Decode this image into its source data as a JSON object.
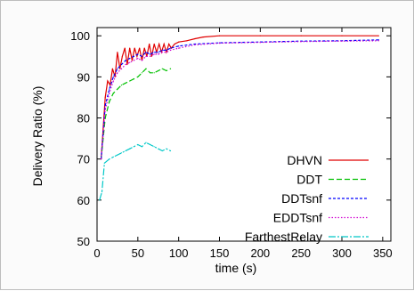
{
  "chart_data": {
    "type": "line",
    "xlabel": "time (s)",
    "ylabel": "Delivery Ratio (%)",
    "xlim": [
      0,
      360
    ],
    "ylim": [
      50,
      102
    ],
    "xticks": [
      "0",
      "50",
      "100",
      "150",
      "200",
      "250",
      "300",
      "350"
    ],
    "yticks": [
      "50",
      "60",
      "70",
      "80",
      "90",
      "100"
    ],
    "legend_position": "bottom-right",
    "grid": false,
    "series": [
      {
        "name": "DHVN",
        "color": "#e00000",
        "dash": "",
        "points": [
          [
            5,
            70
          ],
          [
            10,
            85
          ],
          [
            13,
            89
          ],
          [
            16,
            88
          ],
          [
            19,
            92
          ],
          [
            22,
            90
          ],
          [
            25,
            96
          ],
          [
            28,
            92
          ],
          [
            31,
            95
          ],
          [
            34,
            97
          ],
          [
            37,
            93
          ],
          [
            40,
            97
          ],
          [
            43,
            94
          ],
          [
            46,
            97
          ],
          [
            49,
            95
          ],
          [
            52,
            97
          ],
          [
            55,
            94
          ],
          [
            58,
            97
          ],
          [
            61,
            95
          ],
          [
            64,
            98
          ],
          [
            67,
            95
          ],
          [
            70,
            98
          ],
          [
            73,
            96
          ],
          [
            76,
            98
          ],
          [
            79,
            96
          ],
          [
            82,
            98
          ],
          [
            85,
            96
          ],
          [
            88,
            98
          ],
          [
            91,
            97
          ],
          [
            95,
            98
          ],
          [
            100,
            98.5
          ],
          [
            110,
            98.8
          ],
          [
            120,
            99.3
          ],
          [
            130,
            99.7
          ],
          [
            150,
            100
          ],
          [
            200,
            100
          ],
          [
            250,
            100
          ],
          [
            300,
            100
          ],
          [
            345,
            100
          ]
        ]
      },
      {
        "name": "DDT",
        "color": "#00c000",
        "dash": "6,3",
        "points": [
          [
            5,
            70
          ],
          [
            10,
            80
          ],
          [
            15,
            84
          ],
          [
            20,
            86
          ],
          [
            25,
            87
          ],
          [
            30,
            88
          ],
          [
            35,
            88.5
          ],
          [
            40,
            89
          ],
          [
            45,
            89.5
          ],
          [
            50,
            90
          ],
          [
            55,
            91
          ],
          [
            60,
            92
          ],
          [
            65,
            91
          ],
          [
            70,
            91
          ],
          [
            75,
            91.5
          ],
          [
            80,
            92
          ],
          [
            85,
            91.5
          ],
          [
            90,
            92
          ]
        ]
      },
      {
        "name": "DDTsnf",
        "color": "#0000ff",
        "dash": "3,2",
        "points": [
          [
            5,
            70
          ],
          [
            10,
            83
          ],
          [
            15,
            87
          ],
          [
            20,
            90
          ],
          [
            25,
            92
          ],
          [
            30,
            93
          ],
          [
            35,
            94
          ],
          [
            40,
            94.5
          ],
          [
            45,
            95
          ],
          [
            50,
            95.5
          ],
          [
            55,
            95
          ],
          [
            60,
            96
          ],
          [
            65,
            95.5
          ],
          [
            70,
            96
          ],
          [
            75,
            96
          ],
          [
            80,
            96.5
          ],
          [
            85,
            96.5
          ],
          [
            90,
            97
          ],
          [
            100,
            97.5
          ],
          [
            120,
            98
          ],
          [
            150,
            98.3
          ],
          [
            200,
            98.5
          ],
          [
            250,
            98.7
          ],
          [
            300,
            98.8
          ],
          [
            345,
            99
          ]
        ]
      },
      {
        "name": "EDDTsnf",
        "color": "#d000d0",
        "dash": "1.5,2",
        "points": [
          [
            5,
            70
          ],
          [
            10,
            82
          ],
          [
            15,
            86
          ],
          [
            20,
            89
          ],
          [
            25,
            91
          ],
          [
            30,
            92
          ],
          [
            35,
            93
          ],
          [
            40,
            93.5
          ],
          [
            45,
            94
          ],
          [
            50,
            94.5
          ],
          [
            55,
            94
          ],
          [
            60,
            95
          ],
          [
            65,
            95
          ],
          [
            70,
            95.5
          ],
          [
            75,
            95.5
          ],
          [
            80,
            96
          ],
          [
            85,
            96
          ],
          [
            90,
            96.5
          ],
          [
            100,
            97
          ],
          [
            120,
            97.8
          ],
          [
            150,
            98.2
          ],
          [
            200,
            98.4
          ],
          [
            250,
            98.6
          ],
          [
            300,
            98.7
          ],
          [
            345,
            98.8
          ]
        ]
      },
      {
        "name": "FarthestRelay",
        "color": "#00c8c8",
        "dash": "8,2,2,2",
        "points": [
          [
            3,
            60
          ],
          [
            6,
            62
          ],
          [
            9,
            69
          ],
          [
            15,
            70
          ],
          [
            20,
            70.5
          ],
          [
            25,
            71
          ],
          [
            30,
            71.5
          ],
          [
            35,
            72
          ],
          [
            40,
            72.5
          ],
          [
            45,
            73
          ],
          [
            50,
            73.5
          ],
          [
            55,
            73
          ],
          [
            60,
            74
          ],
          [
            65,
            73.5
          ],
          [
            70,
            73
          ],
          [
            75,
            72.5
          ],
          [
            80,
            72
          ],
          [
            85,
            72.5
          ],
          [
            90,
            72
          ]
        ]
      }
    ]
  }
}
